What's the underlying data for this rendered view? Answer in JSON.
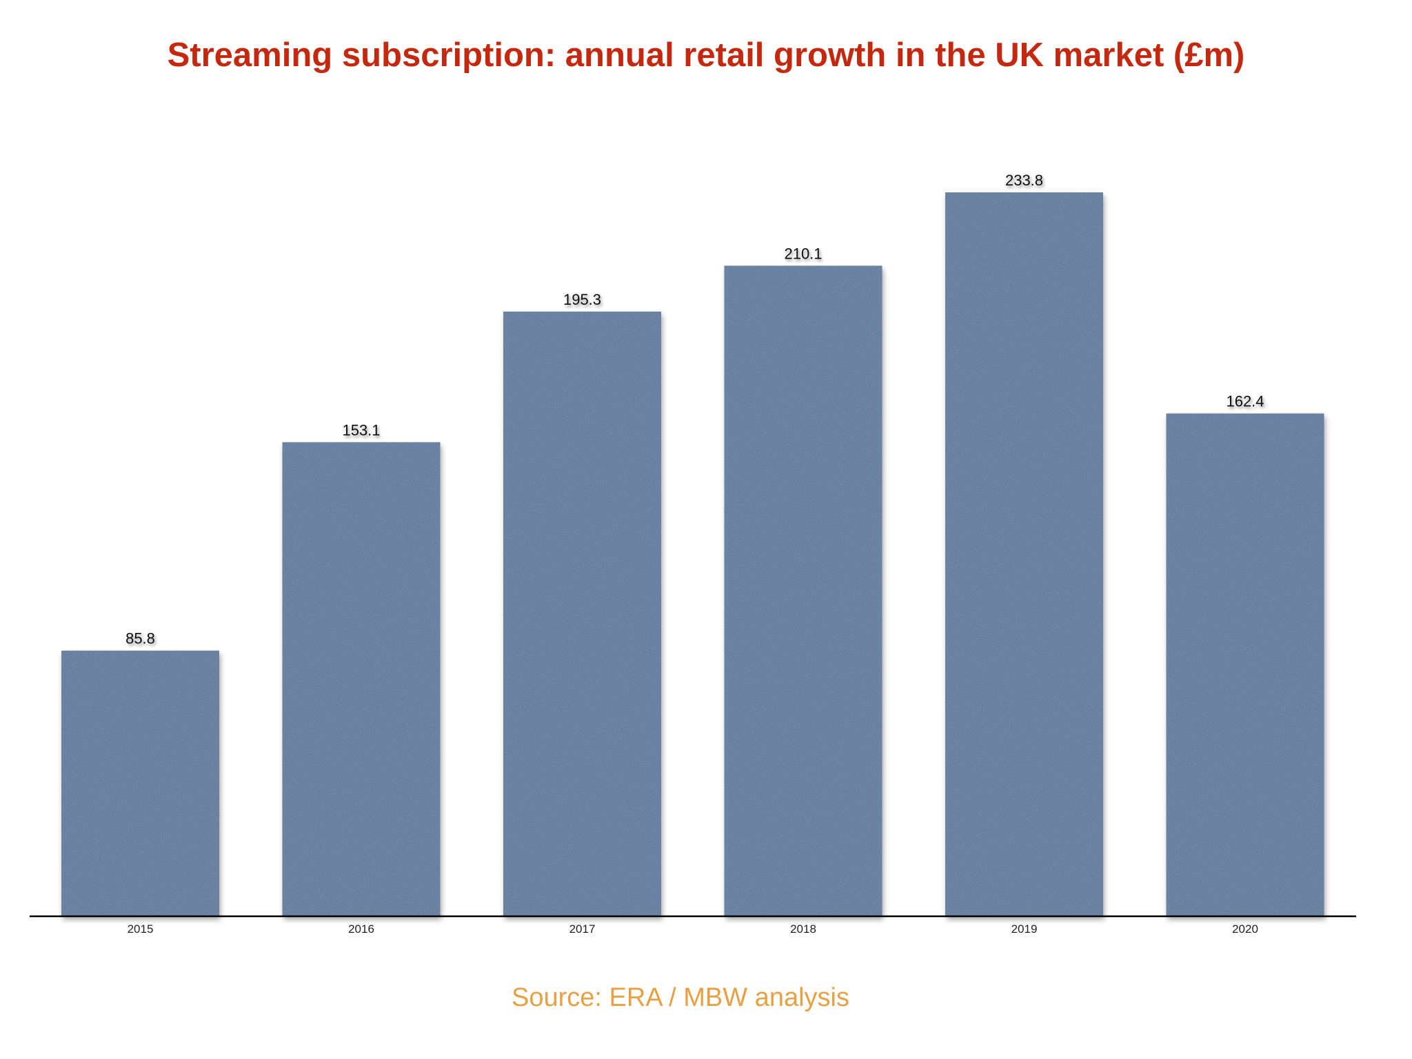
{
  "chart_data": {
    "type": "bar",
    "title": "Streaming subscription: annual retail growth in the UK market (£m)",
    "xlabel": "",
    "ylabel": "",
    "categories": [
      "2015",
      "2016",
      "2017",
      "2018",
      "2019",
      "2020"
    ],
    "values": [
      85.8,
      153.1,
      195.3,
      210.1,
      233.8,
      162.4
    ],
    "value_labels": [
      "85.8",
      "153.1",
      "195.3",
      "210.1",
      "233.8",
      "162.4"
    ],
    "ylim": [
      0,
      233.8
    ],
    "grid": false,
    "legend": "none",
    "source": "Source: ERA / MBW analysis"
  },
  "colors": {
    "title": "#c4290f",
    "bar": "#4d6a93",
    "source": "#e9a042",
    "axis": "#000000"
  }
}
